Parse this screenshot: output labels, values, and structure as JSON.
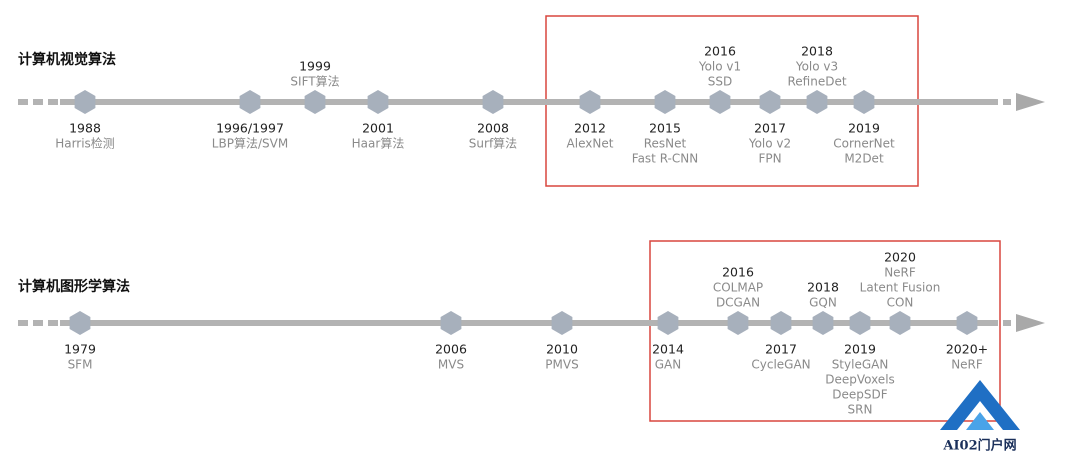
{
  "timelines": [
    {
      "title": "计算机视觉算法",
      "events": [
        {
          "year": "1988",
          "labels": [
            "Harris检测"
          ]
        },
        {
          "year": "1996/1997",
          "labels": [
            "LBP算法/SVM"
          ]
        },
        {
          "year": "1999",
          "labels": [
            "SIFT算法"
          ]
        },
        {
          "year": "2001",
          "labels": [
            "Haar算法"
          ]
        },
        {
          "year": "2008",
          "labels": [
            "Surf算法"
          ]
        },
        {
          "year": "2012",
          "labels": [
            "AlexNet"
          ]
        },
        {
          "year": "2015",
          "labels": [
            "ResNet",
            "Fast R-CNN"
          ]
        },
        {
          "year": "2016",
          "labels": [
            "Yolo v1",
            "SSD"
          ]
        },
        {
          "year": "2017",
          "labels": [
            "Yolo v2",
            "FPN"
          ]
        },
        {
          "year": "2018",
          "labels": [
            "Yolo v3",
            "RefineDet"
          ]
        },
        {
          "year": "2019",
          "labels": [
            "CornerNet",
            "M2Det"
          ]
        }
      ]
    },
    {
      "title": "计算机图形学算法",
      "events": [
        {
          "year": "1979",
          "labels": [
            "SFM"
          ]
        },
        {
          "year": "2006",
          "labels": [
            "MVS"
          ]
        },
        {
          "year": "2010",
          "labels": [
            "PMVS"
          ]
        },
        {
          "year": "2014",
          "labels": [
            "GAN"
          ]
        },
        {
          "year": "2016",
          "labels": [
            "COLMAP",
            "DCGAN"
          ]
        },
        {
          "year": "2017",
          "labels": [
            "CycleGAN"
          ]
        },
        {
          "year": "2018",
          "labels": [
            "GQN"
          ]
        },
        {
          "year": "2019",
          "labels": [
            "StyleGAN",
            "DeepVoxels",
            "DeepSDF",
            "SRN"
          ]
        },
        {
          "year": "2020",
          "labels": [
            "NeRF",
            "Latent Fusion",
            "CON"
          ]
        },
        {
          "year": "2020+",
          "labels": [
            "NeRF"
          ]
        }
      ]
    }
  ],
  "watermark": "AI02门户网"
}
